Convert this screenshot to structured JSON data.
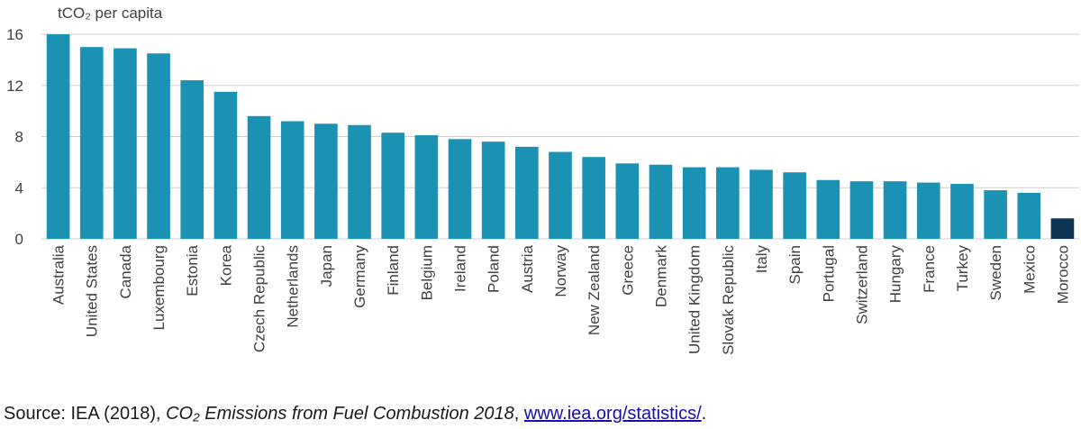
{
  "chart_data": {
    "type": "bar",
    "ylabel": "tCO₂ per capita",
    "ylim": [
      0,
      16
    ],
    "yticks": [
      0,
      4,
      8,
      12,
      16
    ],
    "grid": true,
    "categories": [
      "Australia",
      "United States",
      "Canada",
      "Luxembourg",
      "Estonia",
      "Korea",
      "Czech Republic",
      "Netherlands",
      "Japan",
      "Germany",
      "Finland",
      "Belgium",
      "Ireland",
      "Poland",
      "Austria",
      "Norway",
      "New Zealand",
      "Greece",
      "Denmark",
      "United Kingdom",
      "Slovak Republic",
      "Italy",
      "Spain",
      "Portugal",
      "Switzerland",
      "Hungary",
      "France",
      "Turkey",
      "Sweden",
      "Mexico",
      "Morocco"
    ],
    "values": [
      16.0,
      15.0,
      14.9,
      14.5,
      12.4,
      11.5,
      9.6,
      9.2,
      9.0,
      8.9,
      8.3,
      8.1,
      7.8,
      7.6,
      7.2,
      6.8,
      6.4,
      5.9,
      5.8,
      5.6,
      5.6,
      5.4,
      5.2,
      4.6,
      4.5,
      4.5,
      4.4,
      4.3,
      3.8,
      3.6,
      1.6
    ],
    "colors": {
      "bar": "#1b92b4",
      "highlight": "#0f3555",
      "grid": "#cfcfcf",
      "text": "#404040"
    },
    "highlight_category": "Morocco"
  },
  "source": {
    "prefix": "Source: IEA (2018), ",
    "title": "CO₂ Emissions from Fuel Combustion 2018",
    "sep": ", ",
    "link": "www.iea.org/statistics/",
    "suffix": "."
  }
}
